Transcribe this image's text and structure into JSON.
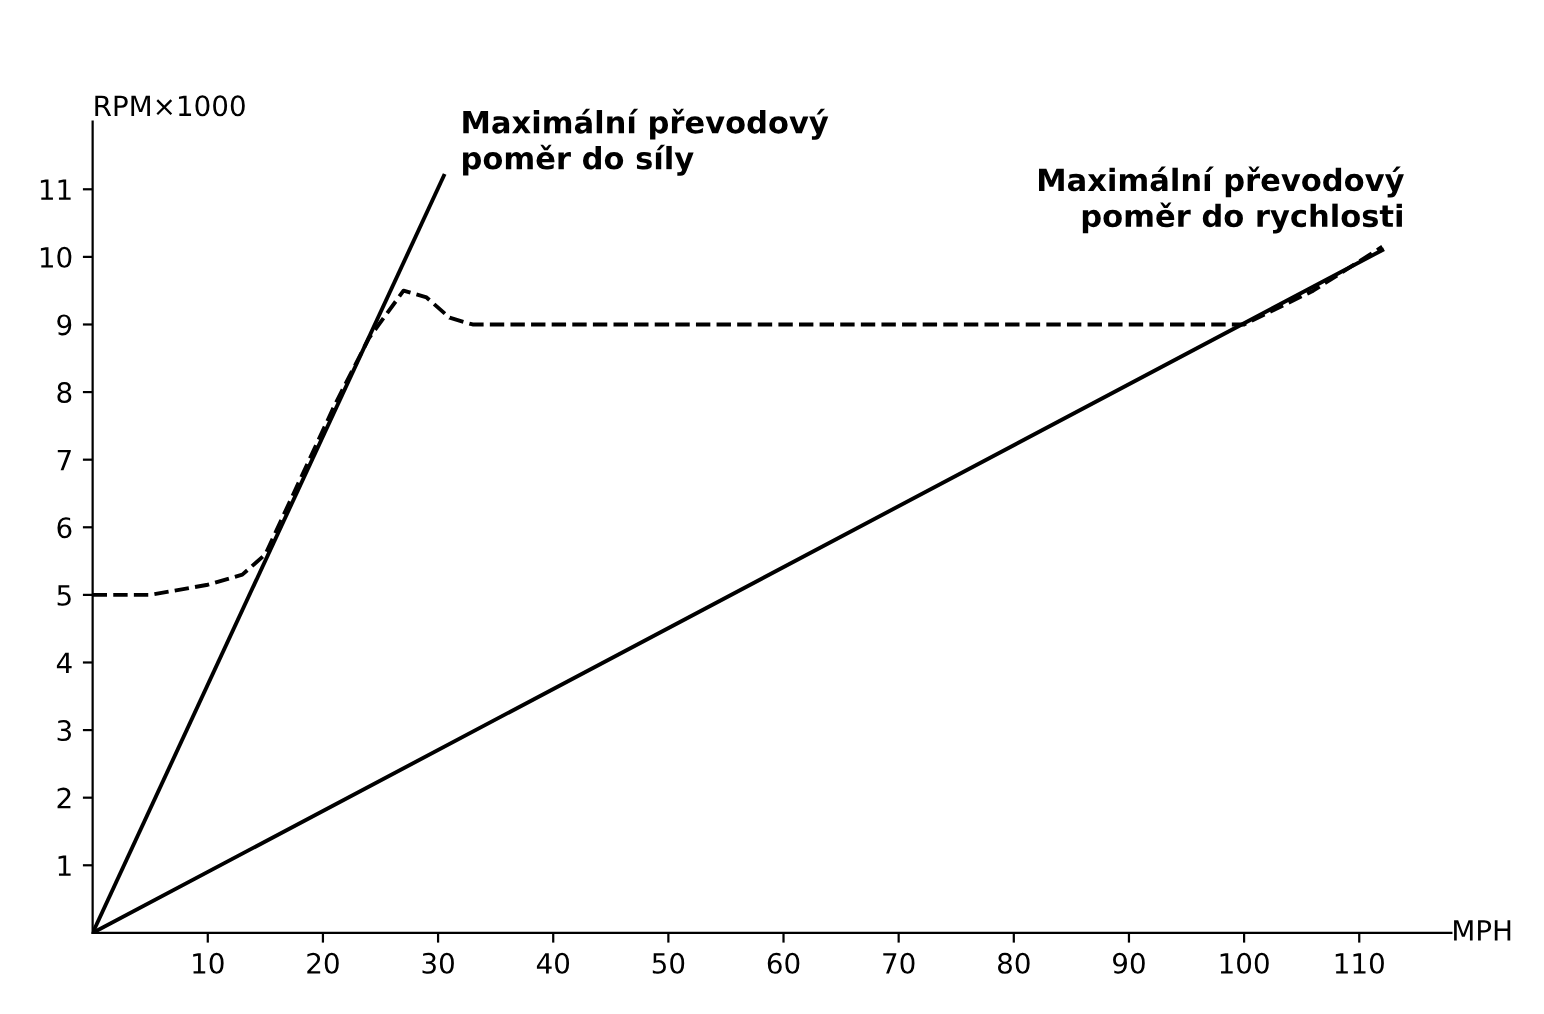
{
  "chart_data": {
    "type": "line",
    "ylabel": "RPM×1000",
    "xlabel": "MPH",
    "xlim": [
      0,
      118
    ],
    "ylim": [
      0,
      12
    ],
    "xticks": [
      10,
      20,
      30,
      40,
      50,
      60,
      70,
      80,
      90,
      100,
      110
    ],
    "yticks": [
      1,
      2,
      3,
      4,
      5,
      6,
      7,
      8,
      9,
      10,
      11
    ],
    "grid": false,
    "legend": false,
    "marker": "none",
    "series": [
      {
        "name": "Maximální převodový\npoměr do síly",
        "color": "#000000",
        "x": [
          0,
          30.5
        ],
        "values": [
          0,
          11.2
        ],
        "line_style": "solid"
      },
      {
        "name": "Maximální převodový\npoměr do rychlosti",
        "color": "#000000",
        "x": [
          0,
          112
        ],
        "values": [
          0,
          10.1
        ],
        "line_style": "solid"
      },
      {
        "color": "#000000",
        "x": [
          0,
          5,
          10,
          13,
          15,
          18,
          21,
          24,
          27,
          29,
          31,
          33,
          40,
          60,
          80,
          100,
          106,
          112
        ],
        "values": [
          5.0,
          5.0,
          5.15,
          5.3,
          5.6,
          6.7,
          7.8,
          8.8,
          9.5,
          9.4,
          9.1,
          9.0,
          9.0,
          9.0,
          9.0,
          9.0,
          9.5,
          10.15
        ],
        "line_style": "dashed"
      }
    ]
  }
}
